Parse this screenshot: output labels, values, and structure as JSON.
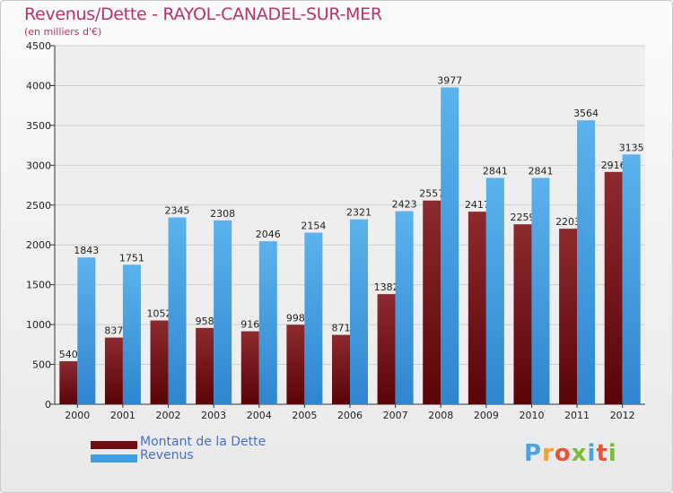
{
  "header": {
    "title": "Revenus/Dette - RAYOL-CANADEL-SUR-MER",
    "subtitle": "(en milliers d'€)"
  },
  "legend": [
    {
      "label": "Montant de la Dette",
      "color": "#6e0e12"
    },
    {
      "label": "Revenus",
      "color": "#3f9fe3"
    }
  ],
  "logo": {
    "text": "Proxiti",
    "colors": [
      "#4aa3df",
      "#f0a030",
      "#e8543a",
      "#7dbb3a",
      "#4aa3df",
      "#e8543a",
      "#7dbb3a"
    ]
  },
  "chart_data": {
    "type": "bar",
    "title": "Revenus/Dette - RAYOL-CANADEL-SUR-MER",
    "subtitle": "(en milliers d'€)",
    "xlabel": "",
    "ylabel": "",
    "ylim": [
      0,
      4500
    ],
    "yticks": [
      0,
      500,
      1000,
      1500,
      2000,
      2500,
      3000,
      3500,
      4000,
      4500
    ],
    "categories": [
      "2000",
      "2001",
      "2002",
      "2003",
      "2004",
      "2005",
      "2006",
      "2007",
      "2008",
      "2009",
      "2010",
      "2011",
      "2012"
    ],
    "series": [
      {
        "name": "Montant de la Dette",
        "color": "#6e0e12",
        "values": [
          540,
          837,
          1052,
          958,
          916,
          998,
          871,
          1382,
          2557,
          2417,
          2259,
          2203,
          2916
        ]
      },
      {
        "name": "Revenus",
        "color": "#3f9fe3",
        "values": [
          1843,
          1751,
          2345,
          2308,
          2046,
          2154,
          2321,
          2423,
          3977,
          2841,
          2841,
          3564,
          3135
        ]
      }
    ],
    "grid": true,
    "legend_position": "bottom-left"
  }
}
